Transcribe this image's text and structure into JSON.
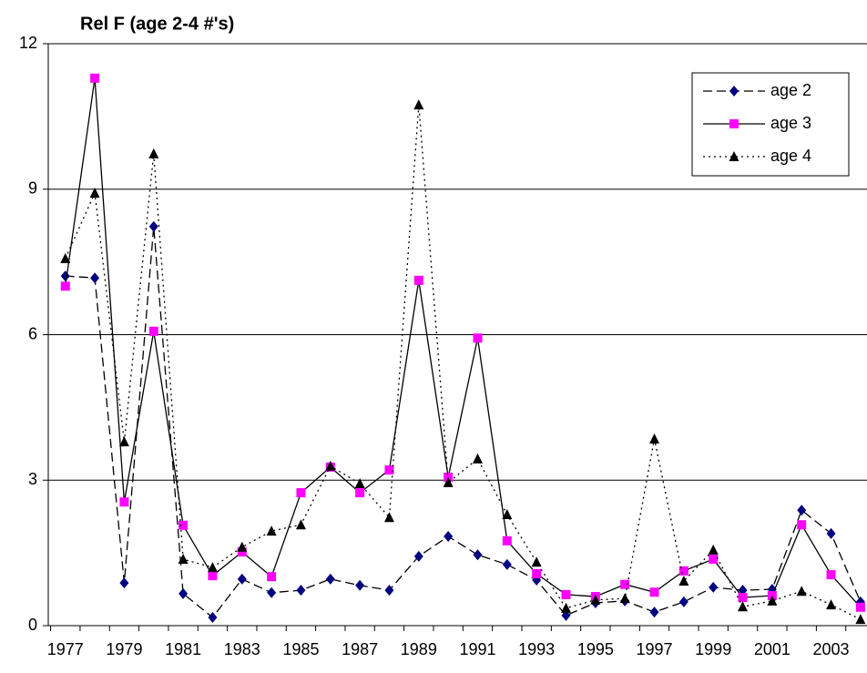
{
  "chart_data": {
    "type": "line",
    "title": "Rel F (age 2-4 #'s)",
    "x": [
      1977,
      1978,
      1979,
      1980,
      1981,
      1982,
      1983,
      1984,
      1985,
      1986,
      1987,
      1988,
      1989,
      1990,
      1991,
      1992,
      1993,
      1994,
      1995,
      1996,
      1997,
      1998,
      1999,
      2000,
      2001,
      2002,
      2003,
      2004
    ],
    "xlim": [
      1976.42,
      2004.22
    ],
    "xticks": [
      1977,
      1979,
      1981,
      1983,
      1985,
      1987,
      1989,
      1991,
      1993,
      1995,
      1997,
      1999,
      2001,
      2003
    ],
    "ylim": [
      0,
      12
    ],
    "yticks": [
      0,
      3,
      6,
      9,
      12
    ],
    "grid": true,
    "legend": "upper right",
    "series": [
      {
        "name": "age 2",
        "color": "#000080",
        "marker": "diamond",
        "marker_color": "#000080",
        "line_color": "#000000",
        "dash": "dashed",
        "values": [
          7.21,
          7.17,
          0.88,
          8.23,
          0.66,
          0.17,
          0.96,
          0.68,
          0.73,
          0.96,
          0.83,
          0.73,
          1.43,
          1.84,
          1.46,
          1.26,
          0.94,
          0.21,
          0.47,
          0.51,
          0.28,
          0.49,
          0.79,
          0.73,
          0.75,
          2.38,
          1.9,
          0.49
        ]
      },
      {
        "name": "age 3",
        "color": "#ff00ff",
        "marker": "square",
        "marker_color": "#ff00ff",
        "line_color": "#000000",
        "dash": "solid",
        "values": [
          7.0,
          11.29,
          2.55,
          6.07,
          2.07,
          1.03,
          1.52,
          1.01,
          2.74,
          3.27,
          2.74,
          3.21,
          7.12,
          3.06,
          5.93,
          1.75,
          1.07,
          0.64,
          0.6,
          0.85,
          0.69,
          1.13,
          1.37,
          0.58,
          0.62,
          2.08,
          1.05,
          0.38
        ]
      },
      {
        "name": "age 4",
        "color": "#000000",
        "marker": "triangle",
        "marker_color": "#000000",
        "line_color": "#000000",
        "dash": "dotted",
        "values": [
          7.57,
          8.92,
          3.79,
          9.73,
          1.37,
          1.2,
          1.62,
          1.95,
          2.08,
          3.29,
          2.93,
          2.23,
          10.74,
          2.95,
          3.44,
          2.29,
          1.31,
          0.36,
          0.53,
          0.56,
          3.85,
          0.92,
          1.56,
          0.39,
          0.51,
          0.71,
          0.43,
          0.13
        ]
      }
    ]
  }
}
